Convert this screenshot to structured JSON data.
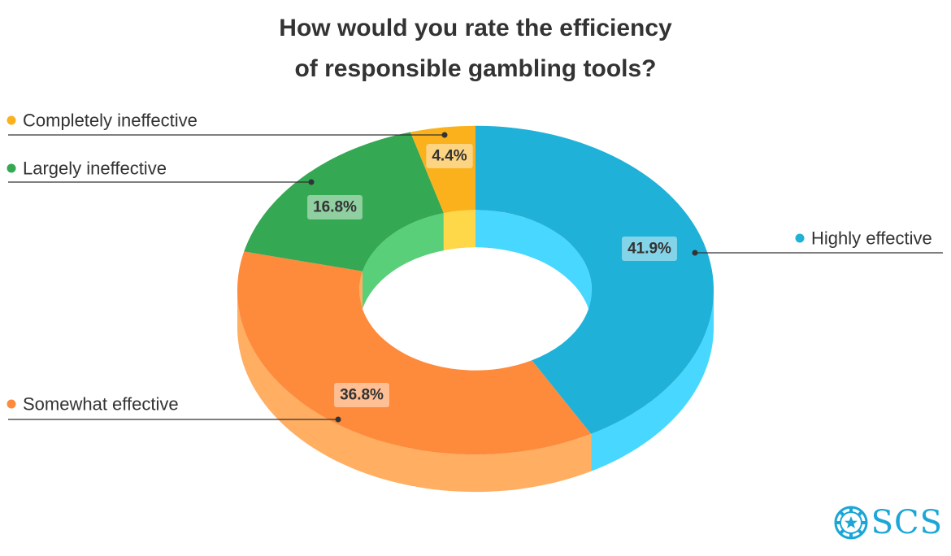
{
  "chart_data": {
    "type": "pie",
    "title_lines": [
      "How would you rate the efficiency",
      "of responsible gambling tools?"
    ],
    "categories": [
      "Highly effective",
      "Somewhat effective",
      "Largely ineffective",
      "Completely ineffective"
    ],
    "values": [
      41.9,
      36.8,
      16.8,
      4.4
    ],
    "labels": [
      "41.9%",
      "36.8%",
      "16.8%",
      "4.4%"
    ],
    "legend_placement": "outside-callouts",
    "colors": {
      "top": [
        "#20b1d8",
        "#fe8a3c",
        "#34a853",
        "#fbb11c"
      ],
      "side": [
        "#47d7ff",
        "#ffae62",
        "#59cf79",
        "#ffd84a"
      ],
      "inner": [
        "#47d7ff",
        "#ffae62",
        "#59cf79",
        "#ffd84a"
      ]
    }
  },
  "logo": {
    "text": "SCS",
    "color": "#1aa6d6"
  }
}
